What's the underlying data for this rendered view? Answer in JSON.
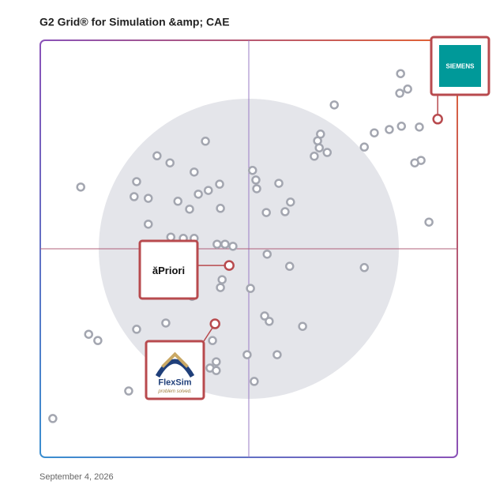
{
  "chart_data": {
    "type": "scatter",
    "title": "G2 Grid® for Simulation &amp; CAE",
    "footer": "September 4, 2026",
    "xlim": [
      0,
      100
    ],
    "ylim": [
      0,
      100
    ],
    "points": {
      "color": "#a3a6b0",
      "x": [
        86.4,
        88.1,
        86.2,
        70.5,
        90.9,
        86.6,
        83.7,
        80.1,
        67.2,
        66.5,
        66.9,
        68.8,
        65.7,
        77.7,
        91.3,
        89.8,
        39.6,
        28.0,
        31.1,
        36.9,
        50.9,
        51.7,
        51.9,
        57.2,
        23.1,
        9.7,
        43.0,
        40.3,
        37.9,
        22.5,
        25.9,
        33.0,
        35.8,
        43.2,
        60.0,
        54.2,
        58.7,
        93.2,
        25.9,
        31.3,
        34.3,
        36.9,
        42.4,
        44.3,
        46.2,
        54.4,
        59.8,
        77.7,
        43.6,
        43.2,
        50.4,
        36.4,
        30.1,
        53.8,
        54.9,
        62.9,
        23.1,
        11.6,
        13.8,
        41.3,
        49.6,
        56.8,
        42.2,
        40.7,
        42.2,
        51.3,
        21.2,
        3.0
      ],
      "y": [
        92.0,
        88.3,
        87.3,
        84.5,
        79.2,
        79.4,
        78.6,
        77.8,
        77.5,
        75.9,
        74.2,
        73.1,
        72.2,
        74.4,
        71.2,
        70.6,
        75.8,
        72.3,
        70.6,
        68.4,
        68.8,
        66.5,
        64.4,
        65.7,
        66.1,
        64.8,
        65.5,
        64.0,
        63.1,
        62.5,
        62.1,
        61.4,
        59.5,
        59.7,
        61.2,
        58.7,
        58.9,
        56.4,
        55.9,
        52.8,
        52.5,
        52.5,
        51.1,
        51.1,
        50.6,
        48.7,
        45.8,
        45.5,
        42.6,
        40.7,
        40.5,
        38.6,
        32.2,
        33.9,
        32.6,
        31.4,
        30.7,
        29.5,
        28.0,
        28.0,
        24.6,
        24.6,
        22.9,
        21.4,
        20.8,
        18.2,
        15.9,
        9.3
      ]
    },
    "highlights": [
      {
        "label": "SIEMENS",
        "x": 95.3,
        "y": 81.1,
        "color": "#b84a4e"
      },
      {
        "label": "ăPriori",
        "x": 45.3,
        "y": 46.0,
        "color": "#b84a4e"
      },
      {
        "label": "FlexSim",
        "tagline": "problem solved.",
        "x": 41.9,
        "y": 32.0,
        "color": "#b84a4e"
      }
    ]
  }
}
